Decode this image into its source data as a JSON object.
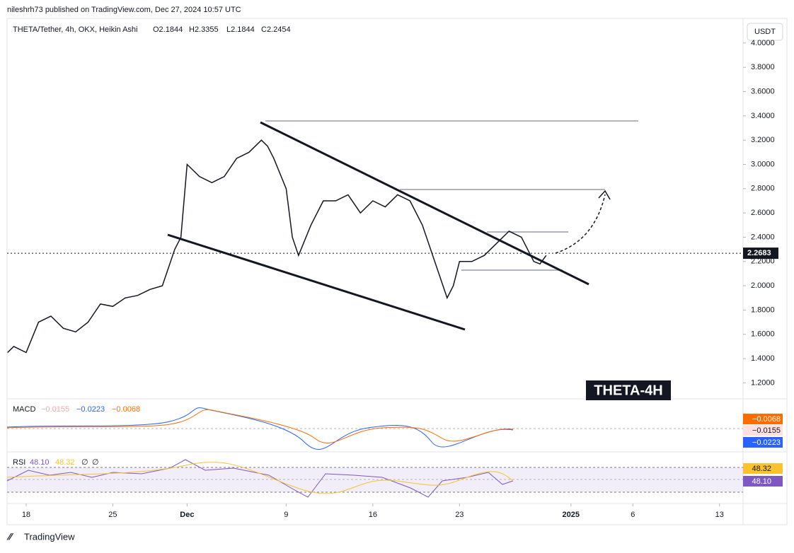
{
  "header": {
    "publisher": "nileshrh73 published on TradingView.com, Dec 27, 2024 10:57 UTC",
    "symbol": "THETA/Tether, 4h, OKX, Heikin Ashi",
    "ohlc": [
      "O2.1844",
      "H2.3355",
      "L2.1844",
      "C2.2454"
    ],
    "currency": "USDT"
  },
  "chart_data": {
    "type": "line",
    "color": "#131722",
    "x": [
      16.5,
      17,
      18,
      19,
      20,
      21,
      22,
      23,
      24,
      25,
      26,
      27,
      28,
      29,
      30,
      30.5,
      31,
      32,
      33,
      34,
      35,
      36,
      37,
      37.5,
      38,
      39,
      39.5,
      40,
      41,
      42,
      43,
      44,
      45,
      46,
      47,
      48,
      49,
      50,
      51,
      52,
      52.5,
      53,
      54,
      55,
      56,
      57,
      58,
      59,
      59.5,
      60
    ],
    "values": [
      1.45,
      1.5,
      1.45,
      1.7,
      1.75,
      1.65,
      1.62,
      1.7,
      1.85,
      1.83,
      1.9,
      1.92,
      1.97,
      2.0,
      2.3,
      2.4,
      3.0,
      2.9,
      2.85,
      2.9,
      3.05,
      3.1,
      3.2,
      3.15,
      3.05,
      2.8,
      2.4,
      2.25,
      2.5,
      2.7,
      2.7,
      2.75,
      2.6,
      2.7,
      2.65,
      2.75,
      2.7,
      2.5,
      2.2,
      1.9,
      2.0,
      2.2,
      2.2,
      2.25,
      2.35,
      2.45,
      2.4,
      2.2,
      2.18,
      2.25
    ],
    "xlim": [
      16.46,
      75.9
    ],
    "ylim": [
      1.08,
      4.18
    ],
    "xticks": [
      {
        "value": 18,
        "label": "18"
      },
      {
        "value": 25,
        "label": "25"
      },
      {
        "value": 31,
        "label": "Dec"
      },
      {
        "value": 39,
        "label": "9"
      },
      {
        "value": 46,
        "label": "16"
      },
      {
        "value": 53,
        "label": "23"
      },
      {
        "value": 62,
        "label": "2025"
      },
      {
        "value": 67,
        "label": "6"
      },
      {
        "value": 74,
        "label": "13"
      }
    ],
    "yticks": [
      {
        "value": 4,
        "label": "4.0000"
      },
      {
        "value": 3.8,
        "label": "3.8000"
      },
      {
        "value": 3.6,
        "label": "3.6000"
      },
      {
        "value": 3.4,
        "label": "3.4000"
      },
      {
        "value": 3.2,
        "label": "3.2000"
      },
      {
        "value": 3,
        "label": "3.0000"
      },
      {
        "value": 2.8,
        "label": "2.8000"
      },
      {
        "value": 2.6,
        "label": "2.6000"
      },
      {
        "value": 2.4,
        "label": "2.4000"
      },
      {
        "value": 2.2,
        "label": "2.2000"
      },
      {
        "value": 2,
        "label": "2.0000"
      },
      {
        "value": 1.8,
        "label": "1.8000"
      },
      {
        "value": 1.6,
        "label": "1.6000"
      },
      {
        "value": 1.4,
        "label": "1.4000"
      },
      {
        "value": 1.2,
        "label": "1.2000"
      }
    ],
    "last_price": 2.2683,
    "annotation": "THETA-4H"
  },
  "macd": {
    "title": "MACD",
    "legend": [
      "−0.0155",
      "−0.0223",
      "−0.0068"
    ],
    "badges": [
      "−0.0068",
      "−0.0155",
      "−0.0223"
    ]
  },
  "rsi": {
    "title": "RSI",
    "legend": [
      "48.10",
      "48.32",
      "∅",
      "∅"
    ],
    "badges": [
      "48.32",
      "48.10"
    ]
  },
  "footer": {
    "brand": "TradingView"
  }
}
